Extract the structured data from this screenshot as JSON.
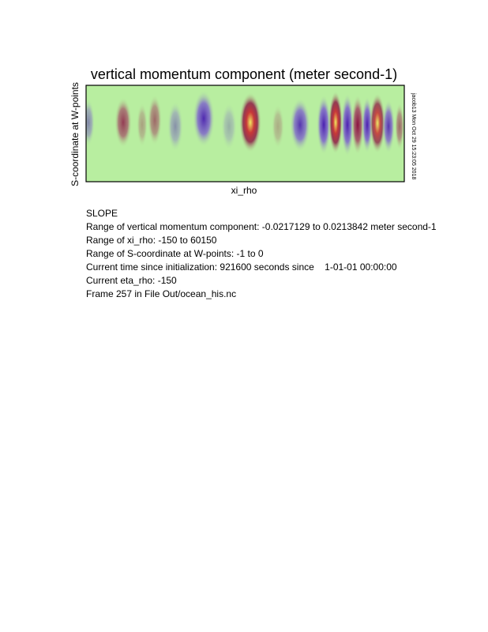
{
  "title": "vertical momentum component (meter second-1)",
  "x_label": "xi_rho",
  "y_label": "S-coordinate at W-points",
  "side_label": "jacob13 Mon Oct 29 15:23:05 2018",
  "info": [
    "SLOPE",
    "Range of vertical momentum component: -0.0217129 to 0.0213842 meter second-1",
    "Range of xi_rho: -150 to 60150",
    "Range of S-coordinate at W-points: -1 to 0",
    "Current time since initialization: 921600 seconds since    1-01-01 00:00:00",
    "Current eta_rho: -150",
    "Frame 257 in File Out/ocean_his.nc"
  ]
}
